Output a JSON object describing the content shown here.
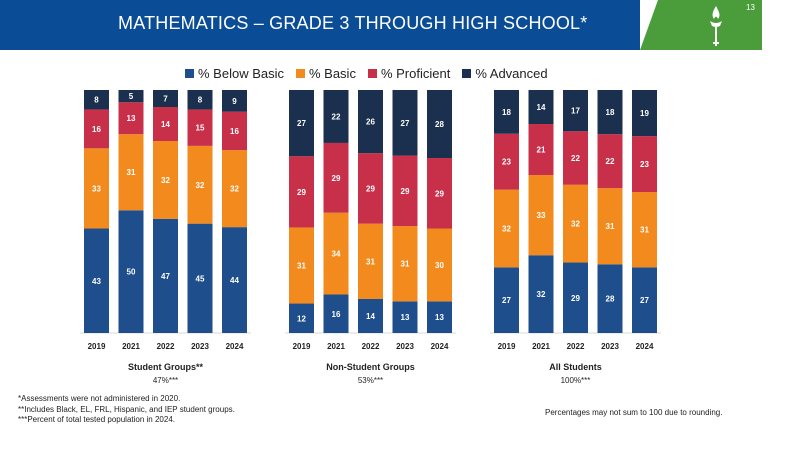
{
  "header": {
    "title": "MATHEMATICS – GRADE 3 THROUGH HIGH SCHOOL*",
    "page_number": "13",
    "logo_icon": "torch-icon"
  },
  "colors": {
    "header_blue": "#0a4d96",
    "accent_green": "#4a9d3a",
    "below_basic": "#1f4e8c",
    "basic": "#f28a1e",
    "proficient": "#c8304a",
    "advanced": "#1b2f4e"
  },
  "chart_data": {
    "type": "bar",
    "stacked": true,
    "normalized": true,
    "legend": {
      "placement": "top",
      "entries": [
        "% Below Basic",
        "% Basic",
        "% Proficient",
        "% Advanced"
      ]
    },
    "groups": [
      {
        "name": "Student Groups**",
        "share": "47%***",
        "categories": [
          "2019",
          "2021",
          "2022",
          "2023",
          "2024"
        ],
        "series": [
          {
            "name": "% Below Basic",
            "values": [
              43,
              50,
              47,
              45,
              44
            ]
          },
          {
            "name": "% Basic",
            "values": [
              33,
              31,
              32,
              32,
              32
            ]
          },
          {
            "name": "% Proficient",
            "values": [
              16,
              13,
              14,
              15,
              16
            ]
          },
          {
            "name": "% Advanced",
            "values": [
              8,
              5,
              7,
              8,
              9
            ]
          }
        ]
      },
      {
        "name": "Non-Student Groups",
        "share": "53%***",
        "categories": [
          "2019",
          "2021",
          "2022",
          "2023",
          "2024"
        ],
        "series": [
          {
            "name": "% Below Basic",
            "values": [
              12,
              16,
              14,
              13,
              13
            ]
          },
          {
            "name": "% Basic",
            "values": [
              31,
              34,
              31,
              31,
              30
            ]
          },
          {
            "name": "% Proficient",
            "values": [
              29,
              29,
              29,
              29,
              29
            ]
          },
          {
            "name": "% Advanced",
            "values": [
              27,
              22,
              26,
              27,
              28
            ]
          }
        ]
      },
      {
        "name": "All Students",
        "share": "100%***",
        "categories": [
          "2019",
          "2021",
          "2022",
          "2023",
          "2024"
        ],
        "series": [
          {
            "name": "% Below Basic",
            "values": [
              27,
              32,
              29,
              28,
              27
            ]
          },
          {
            "name": "% Basic",
            "values": [
              32,
              33,
              32,
              31,
              31
            ]
          },
          {
            "name": "% Proficient",
            "values": [
              23,
              21,
              22,
              22,
              23
            ]
          },
          {
            "name": "% Advanced",
            "values": [
              18,
              14,
              17,
              18,
              19
            ]
          }
        ]
      }
    ],
    "ylim": [
      0,
      100
    ],
    "grid": false
  },
  "footnotes": [
    "*Assessments were not administered in 2020.",
    "**Includes Black, EL, FRL, Hispanic, and IEP student groups.",
    "***Percent of total tested population in 2024."
  ],
  "rounding_note": "Percentages may not sum to 100 due to rounding."
}
